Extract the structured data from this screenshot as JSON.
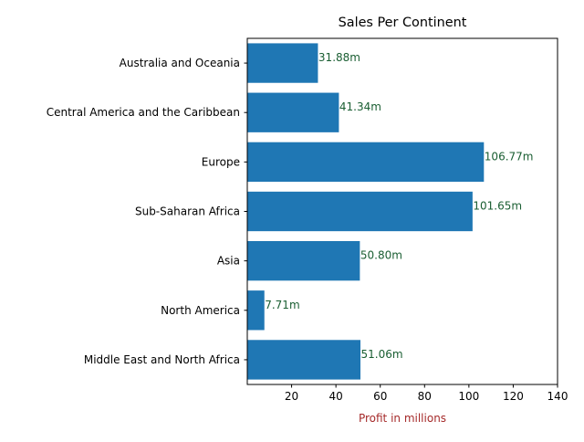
{
  "chart_data": {
    "type": "bar",
    "orientation": "horizontal",
    "title": "Sales Per Continent",
    "xlabel": "Profit in millions",
    "ylabel": "",
    "categories": [
      "Australia and Oceania",
      "Central America and the Caribbean",
      "Europe",
      "Sub-Saharan Africa",
      "Asia",
      "North America",
      "Middle East and North Africa"
    ],
    "values": [
      31.88,
      41.34,
      106.77,
      101.65,
      50.8,
      7.71,
      51.06
    ],
    "data_labels": [
      "31.88m",
      "41.34m",
      "106.77m",
      "101.65m",
      "50.80m",
      "7.71m",
      "51.06m"
    ],
    "xlim": [
      0,
      140
    ],
    "x_ticks": [
      20,
      40,
      60,
      80,
      100,
      120,
      140
    ],
    "grid": false,
    "colors": {
      "bar": "#1f77b4",
      "data_label": "#1a5e32",
      "xlabel": "#a52a2a",
      "axis": "#000000",
      "text": "#000000"
    }
  }
}
